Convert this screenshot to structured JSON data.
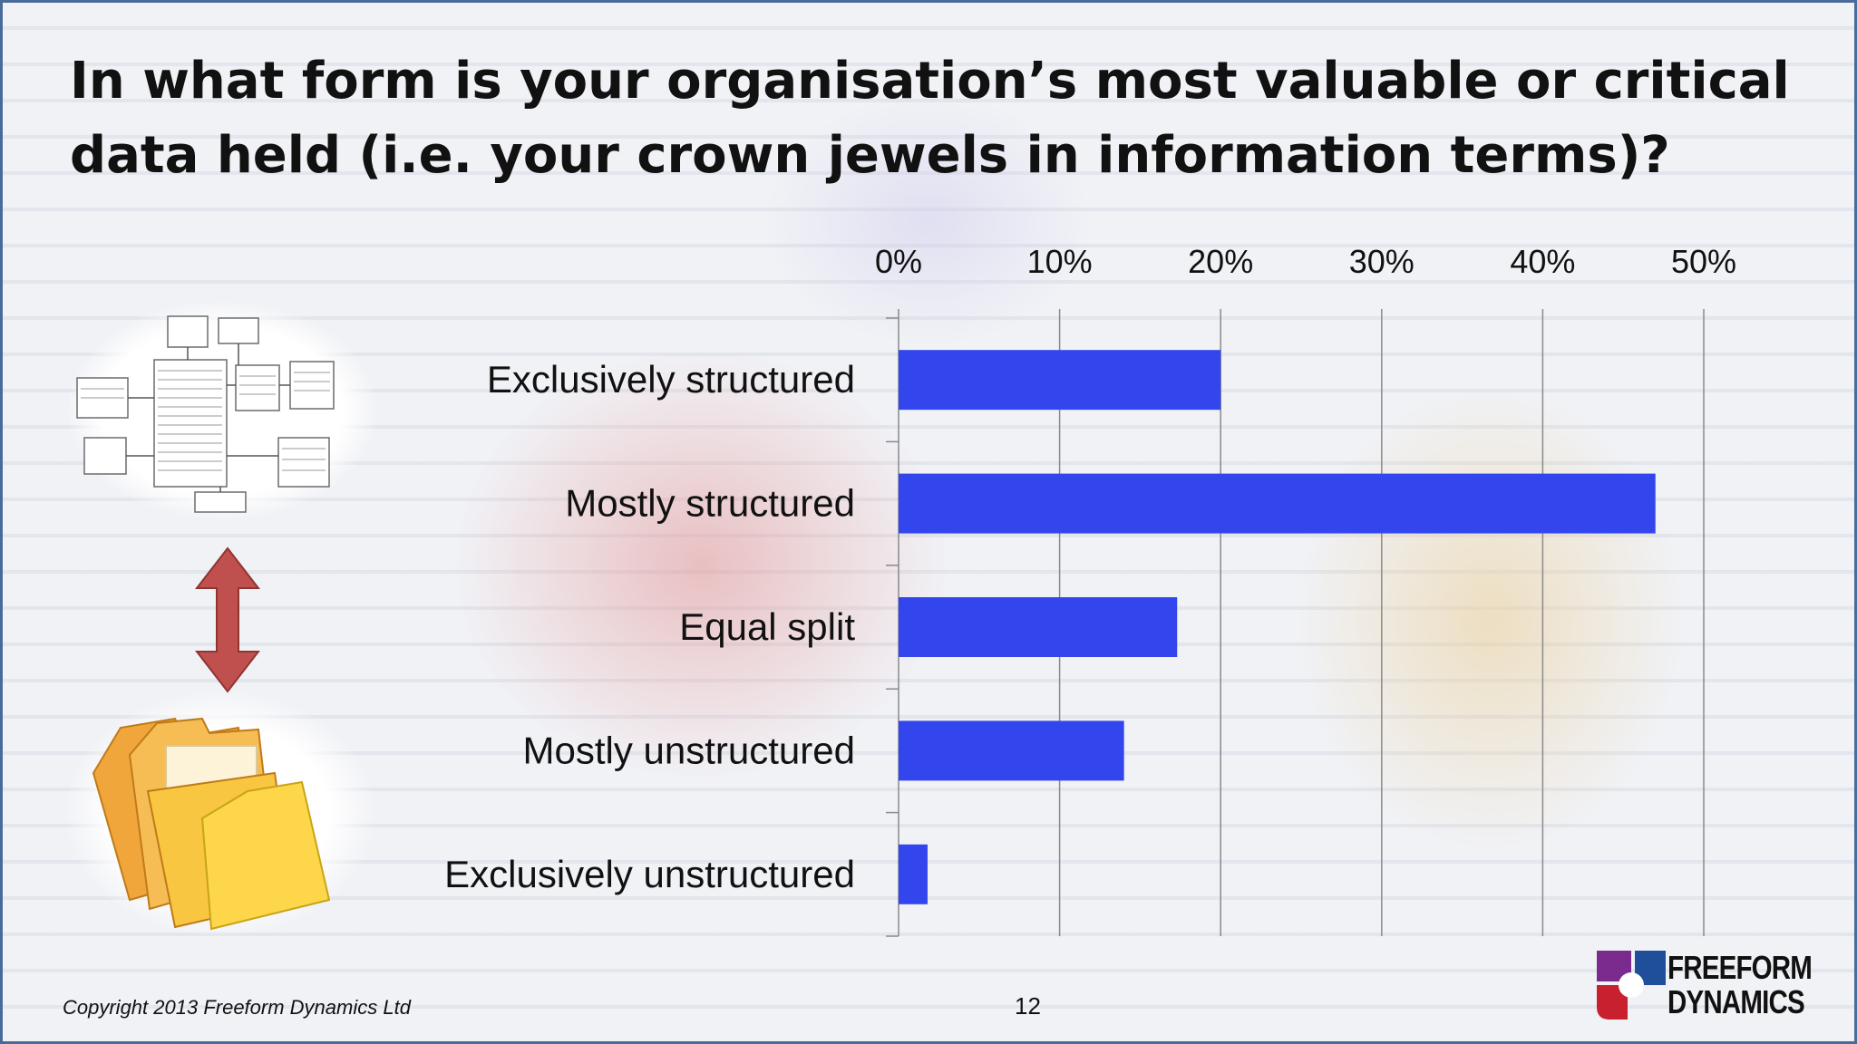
{
  "slide": {
    "title": "In what form is your organisation’s most valuable or critical data held (i.e. your crown jewels in information terms)?",
    "copyright": "Copyright 2013 Freeform Dynamics Ltd",
    "page_number": "12",
    "logo": {
      "line1": "FREEFORM",
      "line2": "DYNAMICS"
    }
  },
  "chart_data": {
    "type": "bar",
    "orientation": "horizontal",
    "categories": [
      "Exclusively structured",
      "Mostly structured",
      "Equal split",
      "Mostly unstructured",
      "Exclusively unstructured"
    ],
    "values": [
      20,
      47,
      17.3,
      14,
      1.8
    ],
    "xlim": [
      0,
      50
    ],
    "ticks": [
      "0%",
      "10%",
      "20%",
      "30%",
      "40%",
      "50%"
    ],
    "tick_values": [
      0,
      10,
      20,
      30,
      40,
      50
    ],
    "axis_position": "top",
    "grid": true,
    "legend": "none",
    "bar_color": "#3346ee"
  },
  "colors": {
    "grid": "#8a8a8a",
    "arrow": "#c0504d",
    "logo_purple": "#7b2b8e",
    "logo_red": "#c8202e",
    "logo_blue": "#1f4e9a"
  },
  "icons": [
    "database-schema-icon",
    "double-arrow-icon",
    "folders-icon"
  ]
}
